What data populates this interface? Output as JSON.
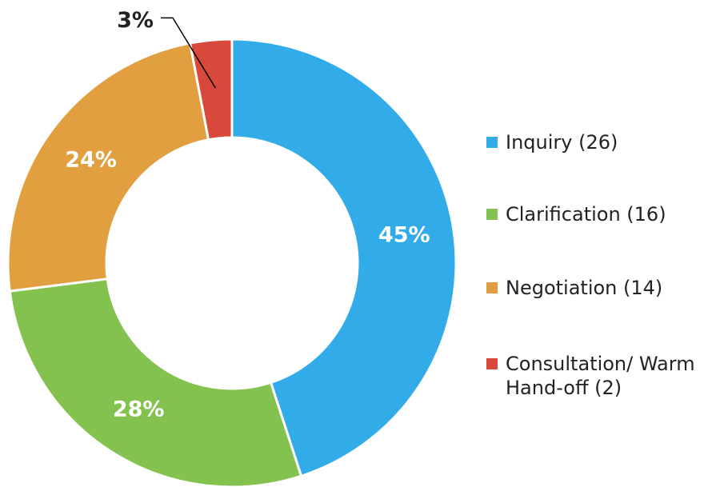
{
  "chart_data": {
    "type": "donut",
    "categories": [
      "Inquiry (26)",
      "Clarification (16)",
      "Negotiation (14)",
      "Consultation/ Warm Hand-off (2)"
    ],
    "values": [
      45,
      28,
      24,
      3
    ],
    "value_labels": [
      "45%",
      "28%",
      "24%",
      "3%"
    ],
    "colors": [
      "#32abe9",
      "#84c250",
      "#e29f3f",
      "#d9493b"
    ],
    "legend": "right"
  }
}
